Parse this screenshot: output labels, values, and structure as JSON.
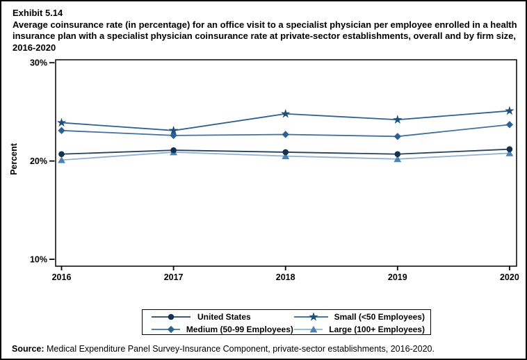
{
  "header": {
    "exhibit": "Exhibit 5.14",
    "title": "Average coinsurance rate (in percentage) for an office visit to a specialist physician per employee enrolled in a health insurance plan with a specialist physician coinsurance rate at private-sector establishments, overall and by firm size, 2016-2020"
  },
  "source": {
    "label": "Source:",
    "text": " Medical Expenditure Panel Survey-Insurance Component, private-sector establishments, 2016-2020."
  },
  "chart_data": {
    "type": "line",
    "ylabel": "Percent",
    "x": [
      2016,
      2017,
      2018,
      2019,
      2020
    ],
    "xtick_labels": [
      "2016",
      "2017",
      "2018",
      "2019",
      "2020"
    ],
    "ylim": [
      9.3,
      30.3
    ],
    "yticks": [
      {
        "value": 10,
        "label": "10%"
      },
      {
        "value": 20,
        "label": "20%"
      },
      {
        "value": 30,
        "label": "30%"
      }
    ],
    "grid": false,
    "legend_position": "bottom",
    "series": [
      {
        "name": "United States",
        "marker": "circle",
        "line_color": "#24425F",
        "marker_color": "#14324F",
        "values": [
          20.7,
          21.1,
          20.9,
          20.7,
          21.2
        ]
      },
      {
        "name": "Medium (50-99 Employees)",
        "marker": "diamond",
        "line_color": "#41719C",
        "marker_color": "#2E6190",
        "values": [
          23.1,
          22.6,
          22.7,
          22.5,
          23.7
        ]
      },
      {
        "name": "Small (<50 Employees)",
        "marker": "star",
        "line_color": "#2E6190",
        "marker_color": "#1F4E79",
        "values": [
          23.9,
          23.1,
          24.8,
          24.2,
          25.1
        ]
      },
      {
        "name": "Large (100+ Employees)",
        "marker": "triangle",
        "line_color": "#8FB0D0",
        "marker_color": "#4E80B0",
        "values": [
          20.1,
          20.9,
          20.5,
          20.2,
          20.8
        ]
      }
    ]
  }
}
